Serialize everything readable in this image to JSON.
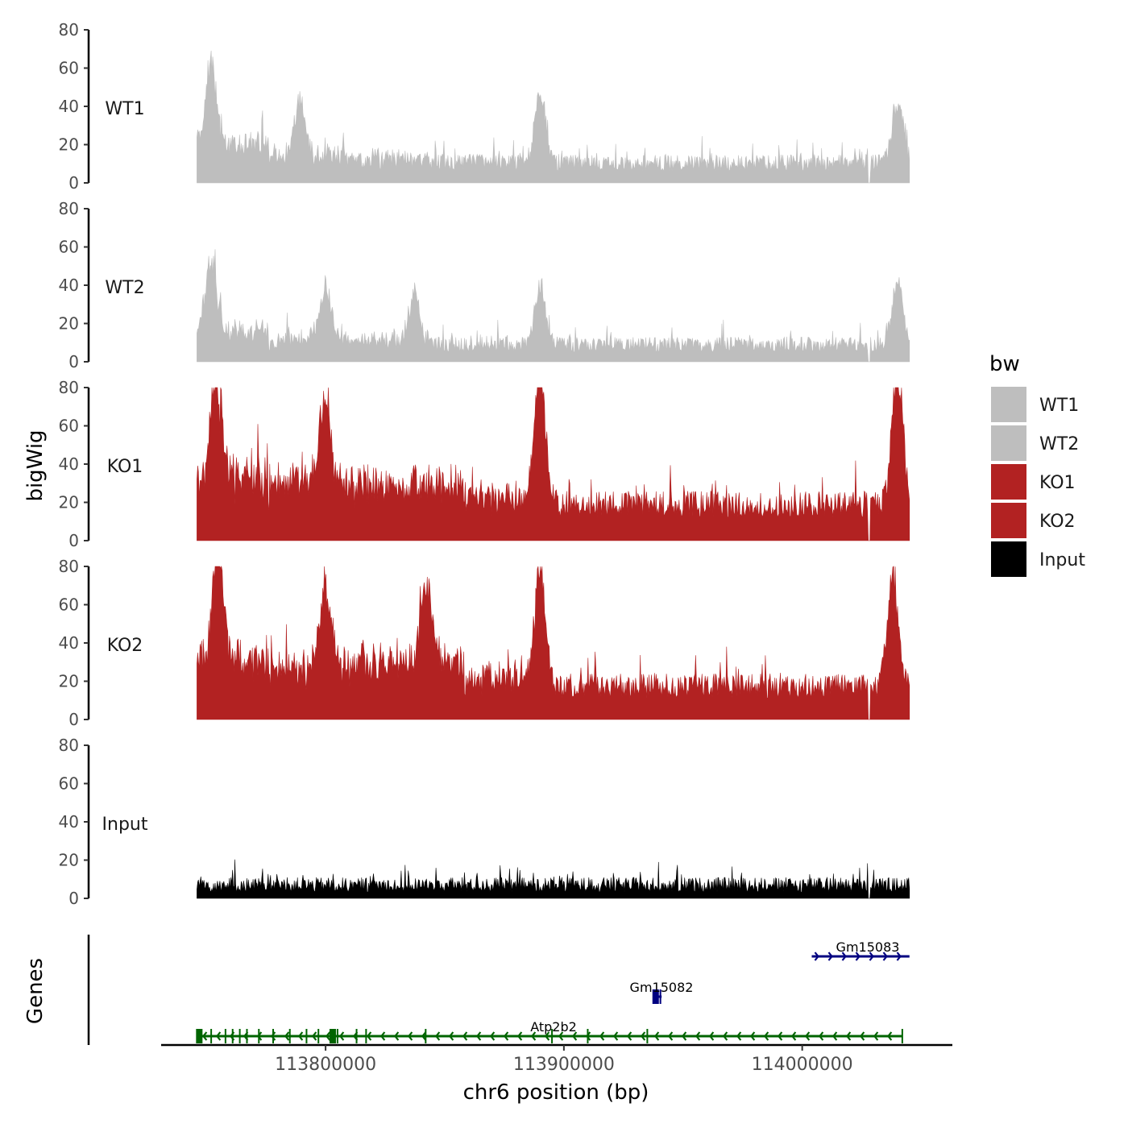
{
  "chart_data": {
    "type": "area",
    "ylabel": "bigWig",
    "xlabel": "chr6 position (bp)",
    "genes_label": "Genes",
    "x_range": [
      113746000,
      114045000
    ],
    "x_axis_limits": [
      113731000,
      114063000
    ],
    "x_ticks": [
      113800000,
      113900000,
      114000000
    ],
    "x_tick_labels": [
      "113800000",
      "113900000",
      "114000000"
    ],
    "ylim": [
      0,
      80
    ],
    "y_ticks": [
      0,
      20,
      40,
      60,
      80
    ],
    "y_tick_labels": [
      "0",
      "20",
      "40",
      "60",
      "80"
    ],
    "gap_at": 114028000,
    "tracks": [
      {
        "name": "WT1",
        "color": "#BEBEBE",
        "baseline": 6,
        "noise": 9,
        "peaks": [
          {
            "x": 113752000,
            "height": 48
          },
          {
            "x": 113789000,
            "height": 30
          },
          {
            "x": 113890000,
            "height": 40
          },
          {
            "x": 114040000,
            "height": 37
          }
        ],
        "plateaus": [
          {
            "from": 113746000,
            "to": 113776000,
            "level": 18
          },
          {
            "from": 113777000,
            "to": 113806000,
            "level": 12
          },
          {
            "from": 113806000,
            "to": 113845000,
            "level": 9
          }
        ]
      },
      {
        "name": "WT2",
        "color": "#BEBEBE",
        "baseline": 5,
        "noise": 8,
        "peaks": [
          {
            "x": 113752000,
            "height": 42
          },
          {
            "x": 113800000,
            "height": 30
          },
          {
            "x": 113837000,
            "height": 28
          },
          {
            "x": 113890000,
            "height": 35
          },
          {
            "x": 114040000,
            "height": 37
          }
        ],
        "plateaus": [
          {
            "from": 113746000,
            "to": 113776000,
            "level": 14
          },
          {
            "from": 113777000,
            "to": 113806000,
            "level": 10
          },
          {
            "from": 113806000,
            "to": 113845000,
            "level": 8
          }
        ]
      },
      {
        "name": "KO1",
        "color": "#B22222",
        "baseline": 12,
        "noise": 14,
        "peaks": [
          {
            "x": 113754000,
            "height": 60
          },
          {
            "x": 113800000,
            "height": 50
          },
          {
            "x": 113890000,
            "height": 79
          },
          {
            "x": 114040000,
            "height": 79
          }
        ],
        "plateaus": [
          {
            "from": 113746000,
            "to": 113776000,
            "level": 30
          },
          {
            "from": 113777000,
            "to": 113812000,
            "level": 28
          },
          {
            "from": 113812000,
            "to": 113858000,
            "level": 25
          },
          {
            "from": 113858000,
            "to": 113885000,
            "level": 18
          }
        ]
      },
      {
        "name": "KO2",
        "color": "#B22222",
        "baseline": 11,
        "noise": 13,
        "peaks": [
          {
            "x": 113755000,
            "height": 62
          },
          {
            "x": 113800000,
            "height": 48
          },
          {
            "x": 113842000,
            "height": 50
          },
          {
            "x": 113890000,
            "height": 70
          },
          {
            "x": 114038000,
            "height": 64
          }
        ],
        "plateaus": [
          {
            "from": 113746000,
            "to": 113776000,
            "level": 30
          },
          {
            "from": 113777000,
            "to": 113812000,
            "level": 24
          },
          {
            "from": 113812000,
            "to": 113858000,
            "level": 28
          },
          {
            "from": 113858000,
            "to": 113885000,
            "level": 18
          }
        ]
      },
      {
        "name": "Input",
        "color": "#000000",
        "baseline": 3,
        "noise": 8,
        "peaks": [],
        "plateaus": []
      }
    ],
    "legend": {
      "title": "bw",
      "position": "right",
      "entries": [
        {
          "label": "WT1",
          "color": "#BEBEBE"
        },
        {
          "label": "WT2",
          "color": "#BEBEBE"
        },
        {
          "label": "KO1",
          "color": "#B22222"
        },
        {
          "label": "KO2",
          "color": "#B22222"
        },
        {
          "label": "Input",
          "color": "#000000"
        }
      ]
    },
    "genes": [
      {
        "name": "Atp2b2",
        "start": 113746000,
        "end": 114042000,
        "strand": "-",
        "color": "#006400",
        "row": 1,
        "exons": [
          113747000,
          113752000,
          113758000,
          113761000,
          113764000,
          113767000,
          113772000,
          113778000,
          113785000,
          113792000,
          113797000,
          113803000,
          113805000,
          113813000,
          113817000,
          113842000,
          113895000,
          113910000,
          113935000,
          114042000
        ]
      },
      {
        "name": "Gm15082",
        "start": 113938000,
        "end": 113941000,
        "strand": "+",
        "color": "#000080",
        "row": 2,
        "exons": [
          113938500,
          113940500
        ]
      },
      {
        "name": "Gm15083",
        "start": 114004000,
        "end": 114045000,
        "strand": "+",
        "color": "#000080",
        "row": 3,
        "exons": []
      }
    ]
  }
}
